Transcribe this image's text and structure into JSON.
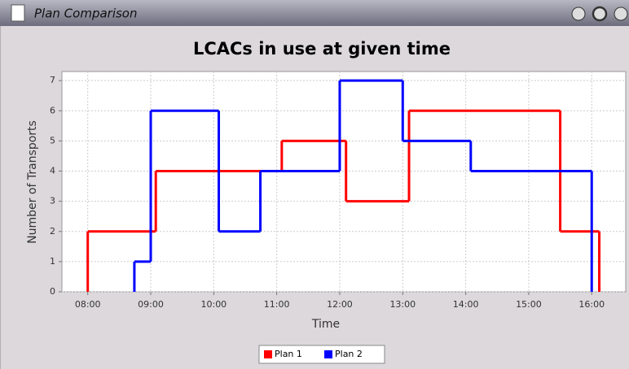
{
  "window_title": "Plan Comparison",
  "chart_data": {
    "type": "step",
    "title": "LCACs in use at given time",
    "x_label": "Time",
    "y_label": "Number of Transports",
    "xlim": [
      7.59,
      16.54
    ],
    "xticks": [
      {
        "value": 8,
        "label": "08:00"
      },
      {
        "value": 9,
        "label": "09:00"
      },
      {
        "value": 10,
        "label": "10:00"
      },
      {
        "value": 11,
        "label": "11:00"
      },
      {
        "value": 12,
        "label": "12:00"
      },
      {
        "value": 13,
        "label": "13:00"
      },
      {
        "value": 14,
        "label": "14:00"
      },
      {
        "value": 15,
        "label": "15:00"
      },
      {
        "value": 16,
        "label": "16:00"
      }
    ],
    "ylim": [
      0,
      7.3
    ],
    "yticks": [
      0,
      1,
      2,
      3,
      4,
      5,
      6,
      7
    ],
    "grid": true,
    "legend": "bottom",
    "series": [
      {
        "name": "Plan 1",
        "color": "#ff0000",
        "x": [
          8.0,
          9.08,
          11.08,
          12.1,
          13.1,
          15.5,
          16.12
        ],
        "values": [
          2,
          4,
          5,
          3,
          6,
          2,
          0
        ]
      },
      {
        "name": "Plan 2",
        "color": "#0000ff",
        "x": [
          8.74,
          9.0,
          10.08,
          10.74,
          12.0,
          13.0,
          14.08,
          16.0
        ],
        "values": [
          1,
          6,
          2,
          4,
          7,
          5,
          4,
          0
        ]
      }
    ]
  }
}
